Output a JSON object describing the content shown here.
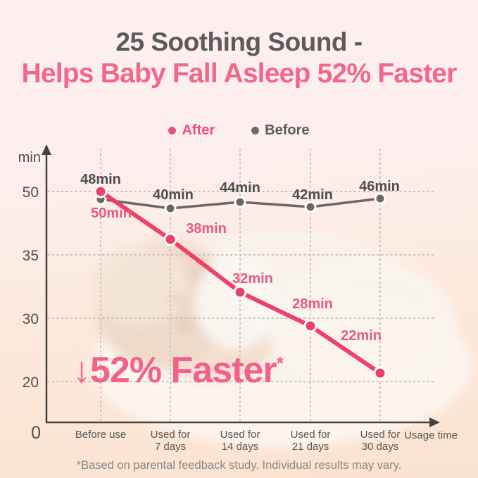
{
  "page": {
    "title": "25 Soothing Sound -",
    "subtitle": "Helps Baby Fall Asleep 52% Faster",
    "footnote": "*Based on parental feedback study. Individual results may vary."
  },
  "legend": {
    "after_label": "After",
    "before_label": "Before"
  },
  "annotation": {
    "text": "↓52% Faster",
    "marker": "*"
  },
  "colors": {
    "after_pink": "#ee4168",
    "after_label_pink": "#e85b80",
    "before_gray": "#6b6765",
    "title_gray": "#5c5b5b",
    "subtitle_pink": "#f2688a",
    "axis": "#434343",
    "grid": "#cbbfbc",
    "background_top": "#fdeeee",
    "background_bottom": "#fbe2cf"
  },
  "chart_data": {
    "type": "line",
    "title": "25 Soothing Sound - Helps Baby Fall Asleep 52% Faster",
    "categories": [
      "Before use",
      "Used for\n7 days",
      "Used for\n14 days",
      "Used for\n21 days",
      "Used for\n30 days"
    ],
    "xlabel": "Usage time",
    "ylabel": "min",
    "origin_label": "0",
    "y_ticks": [
      50,
      35,
      30,
      20
    ],
    "grid": "dotted",
    "legend_position": "top",
    "series": [
      {
        "name": "After",
        "color": "#ee4168",
        "values": [
          50,
          38,
          32,
          28,
          22
        ],
        "point_labels": [
          "50min",
          "38min",
          "32min",
          "28min",
          "22min"
        ]
      },
      {
        "name": "Before",
        "color": "#6b6765",
        "values": [
          48,
          40,
          44,
          42,
          46
        ],
        "point_labels": [
          "48min",
          "40min",
          "44min",
          "42min",
          "46min"
        ]
      }
    ],
    "annotation": "↓52% Faster*"
  }
}
